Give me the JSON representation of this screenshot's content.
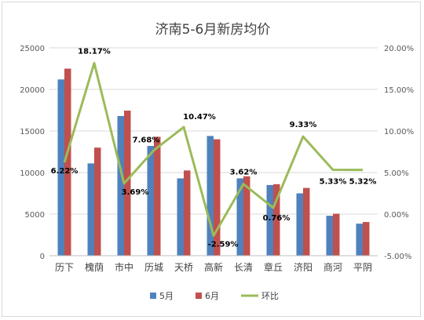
{
  "chart_data": {
    "type": "bar",
    "title": "济南5-6月新房均价",
    "categories": [
      "历下",
      "槐荫",
      "市中",
      "历城",
      "天桥",
      "高新",
      "长清",
      "章丘",
      "济阳",
      "商河",
      "平阴"
    ],
    "series": [
      {
        "name": "5月",
        "type": "bar",
        "axis": "left",
        "color": "#4f81bd",
        "values": [
          21200,
          11100,
          16800,
          13200,
          9300,
          14400,
          9300,
          8500,
          7500,
          4800,
          3850
        ]
      },
      {
        "name": "6月",
        "type": "bar",
        "axis": "left",
        "color": "#c0504d",
        "values": [
          22500,
          13000,
          17450,
          14300,
          10250,
          14000,
          9550,
          8600,
          8150,
          5050,
          4050
        ]
      },
      {
        "name": "环比",
        "type": "line",
        "axis": "right",
        "color": "#9bbb59",
        "values": [
          6.22,
          18.17,
          3.69,
          7.68,
          10.47,
          -2.59,
          3.62,
          0.76,
          9.33,
          5.33,
          5.32
        ],
        "labels": [
          "6.22%",
          "18.17%",
          "3.69%",
          "7.68%",
          "10.47%",
          "-2.59%",
          "3.62%",
          "0.76%",
          "9.33%",
          "5.33%",
          "5.32%"
        ]
      }
    ],
    "y_left": {
      "min": 0,
      "max": 25000,
      "ticks": [
        "0",
        "5000",
        "10000",
        "15000",
        "20000",
        "25000"
      ]
    },
    "y_right": {
      "min": -5,
      "max": 20,
      "ticks": [
        "-5.00%",
        "0.00%",
        "5.00%",
        "10.00%",
        "15.00%",
        "20.00%"
      ]
    },
    "grid": true,
    "legend": "bottom"
  }
}
